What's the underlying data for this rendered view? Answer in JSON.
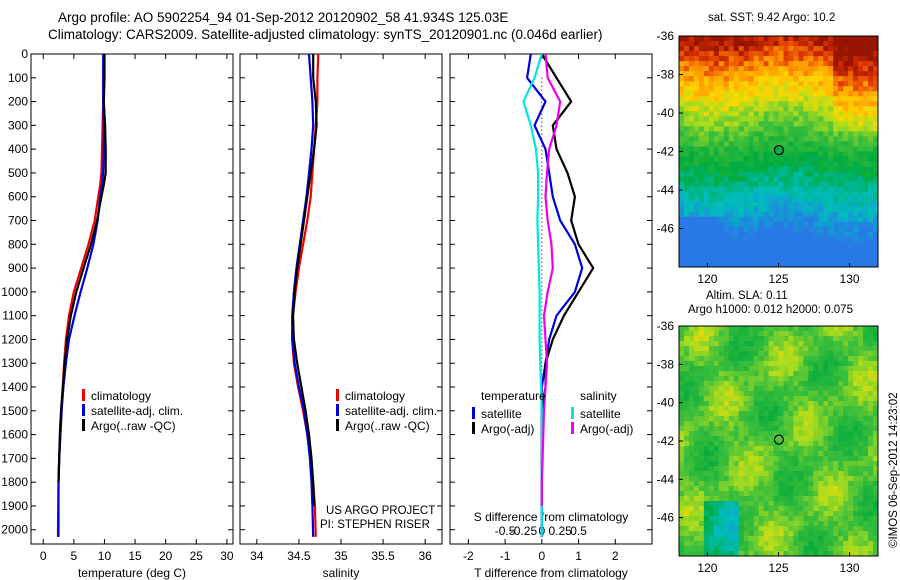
{
  "title_line1": "Argo profile: AO 5902254_94 01-Sep-2012 20120902_58 41.934S 125.03E",
  "title_line2": "Climatology: CARS2009. Satellite-adjusted climatology: synTS_20120901.nc (0.046d earlier)",
  "depth_ticks": [
    "0",
    "100",
    "200",
    "300",
    "400",
    "500",
    "600",
    "700",
    "800",
    "900",
    "1000",
    "1100",
    "1200",
    "1300",
    "1400",
    "1500",
    "1600",
    "1700",
    "1800",
    "1900",
    "2000"
  ],
  "chart_data": [
    {
      "type": "line",
      "xlabel": "temperature (deg C)",
      "ylabel": "",
      "xlim": [
        -2,
        31
      ],
      "ylim": [
        2060,
        0
      ],
      "xticks": [
        "0",
        "5",
        "10",
        "15",
        "20",
        "25",
        "30"
      ],
      "xtick_values": [
        0,
        5,
        10,
        15,
        20,
        25,
        30
      ],
      "legend": [
        "climatology",
        "satellite-adj. clim.",
        "Argo(..raw -QC)"
      ],
      "legend_colors": [
        "#ee0000",
        "#0000dd",
        "#000000"
      ],
      "series": [
        {
          "name": "climatology",
          "color": "#ee0000",
          "x": [
            9.9,
            9.8,
            9.8,
            9.7,
            9.6,
            9.5,
            9.3,
            9.0,
            8.4,
            7.4,
            6.2,
            5.0,
            4.2,
            3.7,
            3.4,
            3.2,
            3.0,
            2.8,
            2.6,
            2.5,
            2.4
          ],
          "y": [
            0,
            100,
            200,
            300,
            400,
            500,
            550,
            600,
            700,
            800,
            900,
            1000,
            1100,
            1200,
            1300,
            1400,
            1500,
            1600,
            1700,
            1800,
            2030
          ]
        },
        {
          "name": "satellite-adj. clim.",
          "color": "#0000dd",
          "x": [
            9.8,
            9.8,
            9.8,
            9.9,
            9.9,
            9.8,
            9.6,
            9.3,
            8.9,
            8.2,
            7.2,
            6.1,
            5.1,
            4.2,
            3.7,
            3.3,
            3.0,
            2.8,
            2.6,
            2.5,
            2.5
          ],
          "y": [
            0,
            100,
            200,
            300,
            400,
            500,
            550,
            600,
            700,
            800,
            900,
            1000,
            1100,
            1200,
            1300,
            1400,
            1500,
            1600,
            1700,
            1800,
            2030
          ]
        },
        {
          "name": "Argo(..raw -QC)",
          "color": "#000000",
          "x": [
            10.0,
            10.0,
            9.9,
            10.1,
            10.2,
            10.2,
            9.9,
            9.5,
            8.8,
            7.8,
            6.6,
            5.4,
            4.5,
            3.9,
            3.5,
            3.2,
            2.9,
            2.7,
            2.6,
            2.5
          ],
          "y": [
            0,
            100,
            200,
            300,
            400,
            500,
            550,
            600,
            700,
            800,
            900,
            1000,
            1100,
            1200,
            1300,
            1400,
            1500,
            1600,
            1700,
            1800
          ]
        }
      ],
      "annotations": []
    },
    {
      "type": "line",
      "xlabel": "salinity",
      "ylabel": "",
      "xlim": [
        33.8,
        36.2
      ],
      "ylim": [
        2060,
        0
      ],
      "xticks": [
        "34",
        "34.5",
        "35",
        "35.5",
        "36"
      ],
      "xtick_values": [
        34,
        34.5,
        35,
        35.5,
        36
      ],
      "legend": [
        "climatology",
        "satellite-adj. clim.",
        "Argo(..raw -QC)"
      ],
      "legend_colors": [
        "#ee0000",
        "#0000dd",
        "#000000"
      ],
      "series": [
        {
          "name": "climatology",
          "color": "#ee0000",
          "x": [
            34.73,
            34.72,
            34.72,
            34.7,
            34.68,
            34.66,
            34.64,
            34.6,
            34.55,
            34.5,
            34.46,
            34.43,
            34.42,
            34.44,
            34.49,
            34.55,
            34.6,
            34.64,
            34.67,
            34.69,
            34.7
          ],
          "y": [
            0,
            100,
            200,
            300,
            400,
            500,
            600,
            700,
            800,
            900,
            1000,
            1100,
            1200,
            1300,
            1400,
            1500,
            1600,
            1700,
            1800,
            1900,
            2030
          ]
        },
        {
          "name": "satellite-adj. clim.",
          "color": "#0000dd",
          "x": [
            34.62,
            34.64,
            34.66,
            34.67,
            34.65,
            34.62,
            34.59,
            34.55,
            34.51,
            34.47,
            34.44,
            34.42,
            34.42,
            34.45,
            34.5,
            34.56,
            34.6,
            34.63,
            34.65,
            34.66,
            34.67
          ],
          "y": [
            0,
            100,
            200,
            300,
            400,
            500,
            600,
            700,
            800,
            900,
            1000,
            1100,
            1200,
            1300,
            1400,
            1500,
            1600,
            1700,
            1800,
            1900,
            2030
          ]
        },
        {
          "name": "Argo(..raw -QC)",
          "color": "#000000",
          "x": [
            34.67,
            34.67,
            34.7,
            34.71,
            34.68,
            34.64,
            34.6,
            34.56,
            34.52,
            34.48,
            34.45,
            34.43,
            34.44,
            34.48,
            34.53,
            34.58,
            34.62,
            34.65,
            34.67,
            34.68
          ],
          "y": [
            0,
            100,
            200,
            300,
            400,
            500,
            600,
            700,
            800,
            900,
            1000,
            1100,
            1200,
            1300,
            1400,
            1500,
            1600,
            1700,
            1800,
            1900
          ]
        }
      ],
      "annotations": [
        "US ARGO PROJECT",
        "PI: STEPHEN RISER"
      ]
    },
    {
      "type": "line",
      "xlabel": "T difference from climatology",
      "x2label": "S difference from climatology",
      "xlim": [
        -2.5,
        3.0
      ],
      "ylim": [
        2060,
        0
      ],
      "xticks": [
        "-2",
        "-1",
        "0",
        "1",
        "2"
      ],
      "xtick_values": [
        -2,
        -1,
        0,
        1,
        2
      ],
      "x2ticks": [
        "-0.5",
        "-0.25",
        "0",
        "0.25",
        "0.5"
      ],
      "x2tick_values": [
        -0.5,
        -0.25,
        0,
        0.25,
        0.5
      ],
      "legend_groups": [
        "temperature",
        "salinity"
      ],
      "legend": [
        "satellite",
        "Argo(-adj)",
        "satellite",
        "Argo(-adj)"
      ],
      "legend_colors": [
        "#0000dd",
        "#000000",
        "#00e5e5",
        "#ee00ee"
      ],
      "series": [
        {
          "name": "temperature satellite",
          "color": "#0000dd",
          "x": [
            -0.3,
            -0.4,
            0.1,
            -0.2,
            0.1,
            0.2,
            0.3,
            0.5,
            0.9,
            1.1,
            0.9,
            0.4,
            0.2,
            0.1,
            0.0,
            0.0,
            0.0,
            0.0,
            0.0,
            0.0
          ],
          "y": [
            0,
            100,
            200,
            300,
            400,
            500,
            600,
            700,
            800,
            900,
            1000,
            1100,
            1200,
            1300,
            1400,
            1500,
            1600,
            1700,
            1800,
            2030
          ]
        },
        {
          "name": "temperature Argo(-adj)",
          "color": "#000000",
          "x": [
            0.0,
            0.4,
            0.8,
            0.3,
            0.4,
            0.7,
            0.9,
            0.8,
            1.0,
            1.4,
            1.0,
            0.6,
            0.3,
            0.1,
            0.1,
            0.0,
            0.0,
            0.0,
            0.0,
            0.0
          ],
          "y": [
            0,
            100,
            200,
            300,
            400,
            500,
            600,
            700,
            800,
            900,
            1000,
            1100,
            1200,
            1300,
            1400,
            1500,
            1600,
            1700,
            1800,
            1900
          ]
        },
        {
          "name": "salinity satellite",
          "color": "#00e5e5",
          "x": [
            0.0,
            -0.1,
            -0.25,
            -0.15,
            -0.08,
            -0.05,
            -0.05,
            -0.06,
            -0.05,
            -0.04,
            -0.03,
            -0.03,
            -0.03,
            -0.02,
            -0.01,
            0.0,
            0.0,
            0.0,
            0.0,
            0.0
          ],
          "y": [
            0,
            100,
            200,
            300,
            400,
            500,
            600,
            700,
            800,
            900,
            1000,
            1100,
            1200,
            1300,
            1400,
            1500,
            1600,
            1700,
            1800,
            2030
          ]
        },
        {
          "name": "salinity Argo(-adj)",
          "color": "#ee00ee",
          "x": [
            0.05,
            0.08,
            0.25,
            0.2,
            0.1,
            0.07,
            0.05,
            0.08,
            0.13,
            0.15,
            0.08,
            0.03,
            0.05,
            0.07,
            0.05,
            0.03,
            0.02,
            0.01,
            0.0,
            0.0
          ],
          "y": [
            0,
            100,
            200,
            300,
            400,
            500,
            600,
            700,
            800,
            900,
            1000,
            1100,
            1200,
            1300,
            1400,
            1500,
            1600,
            1700,
            1800,
            1900
          ]
        }
      ],
      "annotations": []
    },
    {
      "type": "heatmap",
      "title": "sat. SST: 9.42 Argo: 10.2",
      "xlim": [
        118,
        132
      ],
      "ylim": [
        -48,
        -36
      ],
      "xticks": [
        "120",
        "125",
        "130"
      ],
      "xtick_values": [
        120,
        125,
        130
      ],
      "yticks": [
        "-36",
        "-38",
        "-40",
        "-42",
        "-44",
        "-46"
      ],
      "ytick_values": [
        -36,
        -38,
        -40,
        -42,
        -44,
        -46
      ],
      "marker": {
        "lon": 125.03,
        "lat": -41.93
      }
    },
    {
      "type": "heatmap",
      "title": "Altim. SLA: 0.11",
      "subtitle": "Argo h1000: 0.012 h2000: 0.075",
      "xlim": [
        118,
        132
      ],
      "ylim": [
        -48,
        -36
      ],
      "xticks": [
        "120",
        "125",
        "130"
      ],
      "xtick_values": [
        120,
        125,
        130
      ],
      "yticks": [
        "-36",
        "-38",
        "-40",
        "-42",
        "-44",
        "-46"
      ],
      "ytick_values": [
        -36,
        -38,
        -40,
        -42,
        -44,
        -46
      ],
      "marker": {
        "lon": 125.03,
        "lat": -41.93
      }
    }
  ],
  "credit": "©IMOS 06-Sep-2012 14:23:02"
}
